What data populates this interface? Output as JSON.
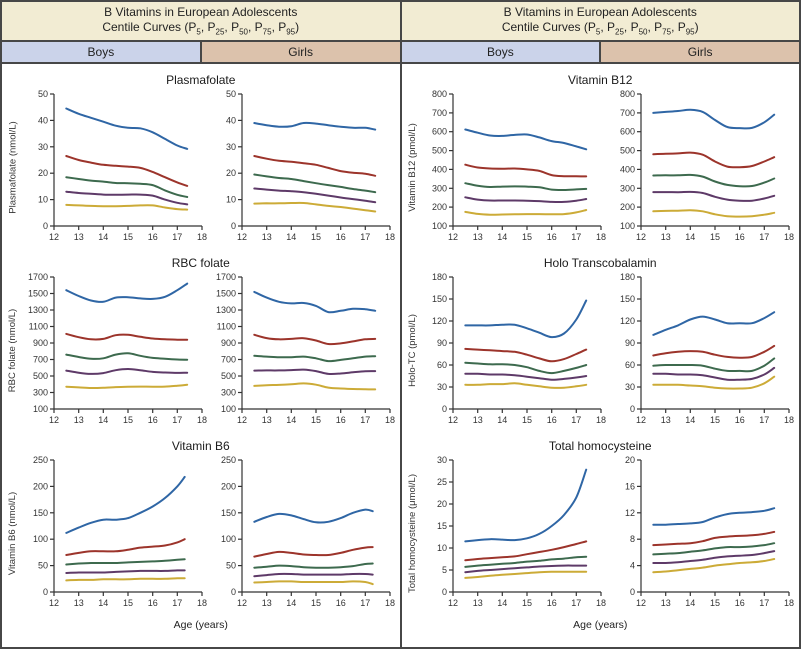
{
  "header": {
    "title_line1": "B Vitamins in European Adolescents",
    "title_line2_parts": [
      {
        "t": "Centile Curves (P"
      },
      {
        "t": "5",
        "sub": true
      },
      {
        "t": ", P"
      },
      {
        "t": "25",
        "sub": true
      },
      {
        "t": ", P"
      },
      {
        "t": "50",
        "sub": true
      },
      {
        "t": ", P"
      },
      {
        "t": "75",
        "sub": true
      },
      {
        "t": ", P"
      },
      {
        "t": "95",
        "sub": true
      },
      {
        "t": ")"
      }
    ],
    "boys_label": "Boys",
    "girls_label": "Girls"
  },
  "xlabel": "Age (years)",
  "colors": {
    "header_bg": "#f2ecd3",
    "boys_bg": "#cbd3ea",
    "girls_bg": "#dcc2ac",
    "border": "#474747",
    "centiles": {
      "P95": "#2f66a5",
      "P75": "#9c342b",
      "P50": "#3d6a4e",
      "P25": "#5e3a68",
      "P5": "#ccab37"
    }
  },
  "centile_order": [
    "P95",
    "P75",
    "P50",
    "P25",
    "P5"
  ],
  "chart_data": [
    {
      "type": "line",
      "panel": "left",
      "title": "Plasmafolate",
      "ylabel": "Plasmafolate (nmol/L)",
      "x": [
        12.5,
        13,
        13.5,
        14,
        14.5,
        15,
        15.5,
        16,
        16.5,
        17,
        17.4
      ],
      "xlim": [
        12,
        18
      ],
      "xticks": [
        12,
        13,
        14,
        15,
        16,
        17,
        18
      ],
      "boys": {
        "ylim": [
          0,
          50
        ],
        "yticks": [
          0,
          10,
          20,
          30,
          40,
          50
        ],
        "series": {
          "P95": [
            44.5,
            42.5,
            41,
            39.5,
            38,
            37.2,
            37,
            35.5,
            33,
            30.5,
            29.2
          ],
          "P75": [
            26.5,
            25,
            24,
            23.2,
            22.8,
            22.5,
            22,
            20.5,
            18.5,
            16.5,
            15.2
          ],
          "P50": [
            18.5,
            17.8,
            17.2,
            16.8,
            16.3,
            16.2,
            16,
            15.5,
            13.5,
            11.8,
            11
          ],
          "P25": [
            13,
            12.5,
            12.2,
            11.9,
            11.8,
            11.9,
            11.9,
            11.5,
            10,
            8.8,
            8.2
          ],
          "P5": [
            8,
            7.8,
            7.6,
            7.5,
            7.5,
            7.6,
            7.8,
            7.8,
            7,
            6.4,
            6.2
          ]
        }
      },
      "girls": {
        "ylim": [
          0,
          50
        ],
        "yticks": [
          0,
          10,
          20,
          30,
          40,
          50
        ],
        "series": {
          "P95": [
            39,
            38.2,
            37.6,
            37.8,
            39,
            38.8,
            38.2,
            37.6,
            37.2,
            37.2,
            36.5
          ],
          "P75": [
            26.5,
            25.5,
            24.7,
            24.3,
            23.8,
            23.2,
            22,
            20.8,
            20.2,
            19.8,
            19
          ],
          "P50": [
            19.5,
            18.8,
            18.2,
            17.8,
            17,
            16.2,
            15.5,
            14.8,
            14,
            13.4,
            12.8
          ],
          "P25": [
            14.2,
            13.8,
            13.4,
            13.2,
            12.8,
            12.2,
            11.5,
            10.8,
            10.2,
            9.6,
            9
          ],
          "P5": [
            8.5,
            8.6,
            8.6,
            8.7,
            8.7,
            8.2,
            7.6,
            7.2,
            6.6,
            6,
            5.5
          ]
        }
      }
    },
    {
      "type": "line",
      "panel": "left",
      "title": "RBC folate",
      "ylabel": "RBC folate (nmol/L)",
      "x": [
        12.5,
        13,
        13.5,
        14,
        14.5,
        15,
        15.5,
        16,
        16.5,
        17,
        17.4
      ],
      "xlim": [
        12,
        18
      ],
      "xticks": [
        12,
        13,
        14,
        15,
        16,
        17,
        18
      ],
      "boys": {
        "ylim": [
          100,
          1700
        ],
        "yticks": [
          100,
          300,
          500,
          700,
          900,
          1100,
          1300,
          1500,
          1700
        ],
        "series": {
          "P95": [
            1540,
            1470,
            1415,
            1400,
            1450,
            1455,
            1440,
            1435,
            1460,
            1540,
            1620
          ],
          "P75": [
            1010,
            970,
            945,
            950,
            995,
            1000,
            975,
            955,
            945,
            940,
            940
          ],
          "P50": [
            760,
            730,
            708,
            715,
            760,
            775,
            745,
            720,
            710,
            700,
            698
          ],
          "P25": [
            565,
            540,
            525,
            535,
            570,
            585,
            570,
            550,
            542,
            538,
            540
          ],
          "P5": [
            370,
            362,
            355,
            358,
            365,
            370,
            372,
            370,
            372,
            382,
            395
          ]
        }
      },
      "girls": {
        "ylim": [
          100,
          1700
        ],
        "yticks": [
          100,
          300,
          500,
          700,
          900,
          1100,
          1300,
          1500,
          1700
        ],
        "series": {
          "P95": [
            1520,
            1450,
            1400,
            1380,
            1385,
            1350,
            1275,
            1290,
            1315,
            1310,
            1290
          ],
          "P75": [
            1000,
            960,
            945,
            950,
            958,
            930,
            888,
            895,
            920,
            945,
            950
          ],
          "P50": [
            745,
            735,
            728,
            728,
            735,
            715,
            680,
            695,
            715,
            735,
            740
          ],
          "P25": [
            565,
            568,
            568,
            572,
            578,
            560,
            525,
            530,
            545,
            558,
            560
          ],
          "P5": [
            380,
            388,
            392,
            400,
            410,
            395,
            360,
            348,
            342,
            340,
            338
          ]
        }
      }
    },
    {
      "type": "line",
      "panel": "left",
      "title": "Vitamin B6",
      "ylabel": "Vitamin B6 (nmol/L)",
      "x": [
        12.5,
        13,
        13.5,
        14,
        14.5,
        15,
        15.5,
        16,
        16.5,
        17,
        17.3
      ],
      "xlim": [
        12,
        18
      ],
      "xticks": [
        12,
        13,
        14,
        15,
        16,
        17,
        18
      ],
      "boys": {
        "ylim": [
          0,
          250
        ],
        "yticks": [
          0,
          50,
          100,
          150,
          200,
          250
        ],
        "series": {
          "P95": [
            112,
            122,
            131,
            137,
            137,
            140,
            150,
            162,
            178,
            200,
            218
          ],
          "P75": [
            70,
            74,
            77,
            77,
            77,
            80,
            84,
            86,
            88,
            94,
            100
          ],
          "P50": [
            52,
            54,
            55,
            55,
            55,
            56,
            57,
            58,
            59,
            61,
            62
          ],
          "P25": [
            36,
            37,
            37,
            37,
            38,
            39,
            40,
            40,
            40,
            41,
            41
          ],
          "P5": [
            22,
            23,
            23,
            24,
            24,
            24,
            25,
            25,
            25,
            26,
            26
          ]
        }
      },
      "girls": {
        "ylim": [
          0,
          250
        ],
        "yticks": [
          0,
          50,
          100,
          150,
          200,
          250
        ],
        "series": {
          "P95": [
            133,
            142,
            148,
            145,
            138,
            132,
            133,
            140,
            150,
            156,
            153
          ],
          "P75": [
            67,
            72,
            76,
            74,
            71,
            70,
            70,
            74,
            80,
            84,
            85
          ],
          "P50": [
            46,
            48,
            50,
            49,
            47,
            46,
            46,
            47,
            49,
            53,
            54
          ],
          "P25": [
            30,
            32,
            34,
            34,
            33,
            33,
            33,
            33,
            34,
            34,
            33
          ],
          "P5": [
            18,
            19,
            20,
            20,
            19,
            19,
            19,
            19,
            20,
            19,
            15
          ]
        }
      }
    },
    {
      "type": "line",
      "panel": "right",
      "title": "Vitamin B12",
      "ylabel": "Vitamin B12 (pmol/L)",
      "x": [
        12.5,
        13,
        13.5,
        14,
        14.5,
        15,
        15.5,
        16,
        16.5,
        17,
        17.4
      ],
      "xlim": [
        12,
        18
      ],
      "xticks": [
        12,
        13,
        14,
        15,
        16,
        17,
        18
      ],
      "boys": {
        "ylim": [
          100,
          800
        ],
        "yticks": [
          100,
          200,
          300,
          400,
          500,
          600,
          700,
          800
        ],
        "series": {
          "P95": [
            612,
            595,
            580,
            578,
            583,
            585,
            570,
            550,
            540,
            522,
            507
          ],
          "P75": [
            425,
            410,
            405,
            404,
            405,
            400,
            392,
            370,
            364,
            364,
            363
          ],
          "P50": [
            327,
            313,
            307,
            309,
            310,
            309,
            305,
            293,
            291,
            294,
            297
          ],
          "P25": [
            252,
            240,
            235,
            235,
            235,
            234,
            232,
            228,
            228,
            234,
            243
          ],
          "P5": [
            175,
            164,
            160,
            161,
            162,
            163,
            163,
            162,
            163,
            172,
            185
          ]
        }
      },
      "girls": {
        "ylim": [
          100,
          800
        ],
        "yticks": [
          100,
          200,
          300,
          400,
          500,
          600,
          700,
          800
        ],
        "series": {
          "P95": [
            700,
            705,
            710,
            716,
            705,
            662,
            625,
            619,
            620,
            650,
            690
          ],
          "P75": [
            480,
            483,
            485,
            489,
            478,
            442,
            415,
            412,
            418,
            442,
            465
          ],
          "P50": [
            368,
            369,
            369,
            371,
            362,
            336,
            318,
            311,
            312,
            330,
            352
          ],
          "P25": [
            280,
            280,
            279,
            281,
            275,
            255,
            240,
            234,
            234,
            246,
            260
          ],
          "P5": [
            178,
            180,
            181,
            184,
            178,
            162,
            152,
            150,
            152,
            160,
            170
          ]
        }
      }
    },
    {
      "type": "line",
      "panel": "right",
      "title": "Holo Transcobalamin",
      "ylabel": "Holo-TC (pmol/L)",
      "x": [
        12.5,
        13,
        13.5,
        14,
        14.5,
        15,
        15.5,
        16,
        16.5,
        17,
        17.4
      ],
      "xlim": [
        12,
        18
      ],
      "xticks": [
        12,
        13,
        14,
        15,
        16,
        17,
        18
      ],
      "boys": {
        "ylim": [
          0,
          180
        ],
        "yticks": [
          0,
          30,
          60,
          90,
          120,
          150,
          180
        ],
        "series": {
          "P95": [
            114,
            114,
            114,
            115,
            115,
            110,
            104,
            98,
            103,
            122,
            148
          ],
          "P75": [
            82,
            81,
            80,
            79,
            78,
            74,
            69,
            65,
            68,
            75,
            81
          ],
          "P50": [
            63,
            62,
            61,
            61,
            60,
            57,
            52,
            49,
            52,
            56,
            60
          ],
          "P25": [
            48,
            48,
            47,
            47,
            46,
            44,
            42,
            40,
            41,
            43,
            45
          ],
          "P5": [
            33,
            33,
            34,
            34,
            35,
            33,
            31,
            29,
            29,
            31,
            33
          ]
        }
      },
      "girls": {
        "ylim": [
          0,
          180
        ],
        "yticks": [
          0,
          30,
          60,
          90,
          120,
          150,
          180
        ],
        "series": {
          "P95": [
            101,
            108,
            114,
            122,
            126,
            122,
            117,
            117,
            117,
            124,
            132
          ],
          "P75": [
            73,
            76,
            78,
            79,
            78,
            74,
            71,
            70,
            71,
            78,
            86
          ],
          "P50": [
            59,
            60,
            60,
            60,
            59,
            55,
            52,
            52,
            52,
            59,
            69
          ],
          "P25": [
            48,
            48,
            47,
            47,
            46,
            43,
            40,
            40,
            41,
            47,
            56
          ],
          "P5": [
            33,
            33,
            33,
            32,
            31,
            29,
            28,
            28,
            29,
            35,
            44
          ]
        }
      }
    },
    {
      "type": "line",
      "panel": "right",
      "title": "Total homocysteine",
      "ylabel": "Total homocysteine (μmol/L)",
      "x": [
        12.5,
        13,
        13.5,
        14,
        14.5,
        15,
        15.5,
        16,
        16.5,
        17,
        17.4
      ],
      "xlim": [
        12,
        18
      ],
      "xticks": [
        12,
        13,
        14,
        15,
        16,
        17,
        18
      ],
      "boys": {
        "ylim": [
          0,
          30
        ],
        "yticks": [
          0,
          5,
          10,
          15,
          20,
          25,
          30
        ],
        "series": {
          "P95": [
            11.5,
            11.8,
            12,
            11.9,
            11.8,
            12.2,
            13.2,
            15,
            17.5,
            21.5,
            27.8
          ],
          "P75": [
            7.2,
            7.5,
            7.7,
            7.9,
            8.1,
            8.6,
            9.1,
            9.6,
            10.2,
            10.9,
            11.5
          ],
          "P50": [
            5.7,
            6,
            6.2,
            6.4,
            6.6,
            6.9,
            7.1,
            7.4,
            7.6,
            7.9,
            8
          ],
          "P25": [
            4.5,
            4.8,
            5,
            5.2,
            5.4,
            5.6,
            5.8,
            5.9,
            6,
            6,
            6
          ],
          "P5": [
            3.2,
            3.4,
            3.7,
            3.9,
            4.1,
            4.3,
            4.5,
            4.6,
            4.6,
            4.6,
            4.6
          ]
        }
      },
      "girls": {
        "ylim": [
          0,
          20
        ],
        "yticks": [
          0,
          4,
          8,
          12,
          16,
          20
        ],
        "series": {
          "P95": [
            10.2,
            10.2,
            10.3,
            10.4,
            10.6,
            11.3,
            11.8,
            12,
            12.1,
            12.3,
            12.7
          ],
          "P75": [
            7.1,
            7.2,
            7.3,
            7.4,
            7.7,
            8.2,
            8.4,
            8.5,
            8.6,
            8.8,
            9.1
          ],
          "P50": [
            5.7,
            5.8,
            5.9,
            6.1,
            6.3,
            6.6,
            6.8,
            6.8,
            6.9,
            7.1,
            7.4
          ],
          "P25": [
            4.4,
            4.4,
            4.5,
            4.7,
            4.9,
            5.2,
            5.4,
            5.5,
            5.6,
            5.9,
            6.2
          ],
          "P5": [
            3,
            3.1,
            3.3,
            3.5,
            3.7,
            4,
            4.2,
            4.4,
            4.5,
            4.7,
            5
          ]
        }
      }
    }
  ]
}
